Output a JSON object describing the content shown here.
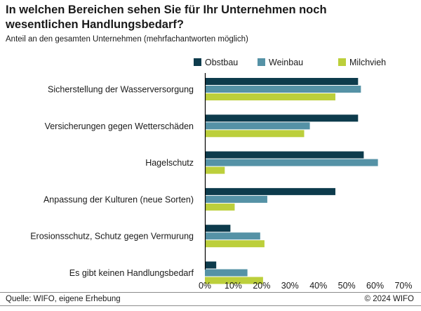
{
  "title": "In welchen Bereichen sehen Sie für Ihr Unternehmen noch wesentlichen Handlungsbedarf?",
  "subtitle": "Anteil an den gesamten Unternehmen (mehrfachantworten möglich)",
  "source": "Quelle: WIFO, eigene Erhebung",
  "copyright": "© 2024 WIFO",
  "colors": {
    "Obstbau": "#0d3b4c",
    "Weinbau": "#5592a6",
    "Milchvieh": "#bccf3b"
  },
  "chart_data": {
    "type": "bar",
    "orientation": "horizontal",
    "title": "In welchen Bereichen sehen Sie für Ihr Unternehmen noch wesentlichen Handlungsbedarf?",
    "subtitle": "Anteil an den gesamten Unternehmen (mehrfachantworten möglich)",
    "categories": [
      "Sicherstellung der Wasserversorgung",
      "Versicherungen gegen Wetterschäden",
      "Hagelschutz",
      "Anpassung der Kulturen (neue Sorten)",
      "Erosionsschutz, Schutz gegen Vermurung",
      "Es gibt keinen Handlungsbedarf"
    ],
    "series": [
      {
        "name": "Obstbau",
        "values": [
          54,
          54,
          56,
          46,
          9,
          4
        ]
      },
      {
        "name": "Weinbau",
        "values": [
          55,
          37,
          61,
          22,
          19.5,
          15
        ]
      },
      {
        "name": "Milchvieh",
        "values": [
          46,
          35,
          7,
          10.5,
          21,
          20.5
        ]
      }
    ],
    "xlim": [
      0,
      70
    ],
    "xticks": [
      0,
      10,
      20,
      30,
      40,
      50,
      60,
      70
    ],
    "xtick_labels": [
      "0%",
      "10%",
      "20%",
      "30%",
      "40%",
      "50%",
      "60%",
      "70%"
    ],
    "xlabel": "",
    "ylabel": "",
    "legend_position": "top-right",
    "grid": false
  }
}
